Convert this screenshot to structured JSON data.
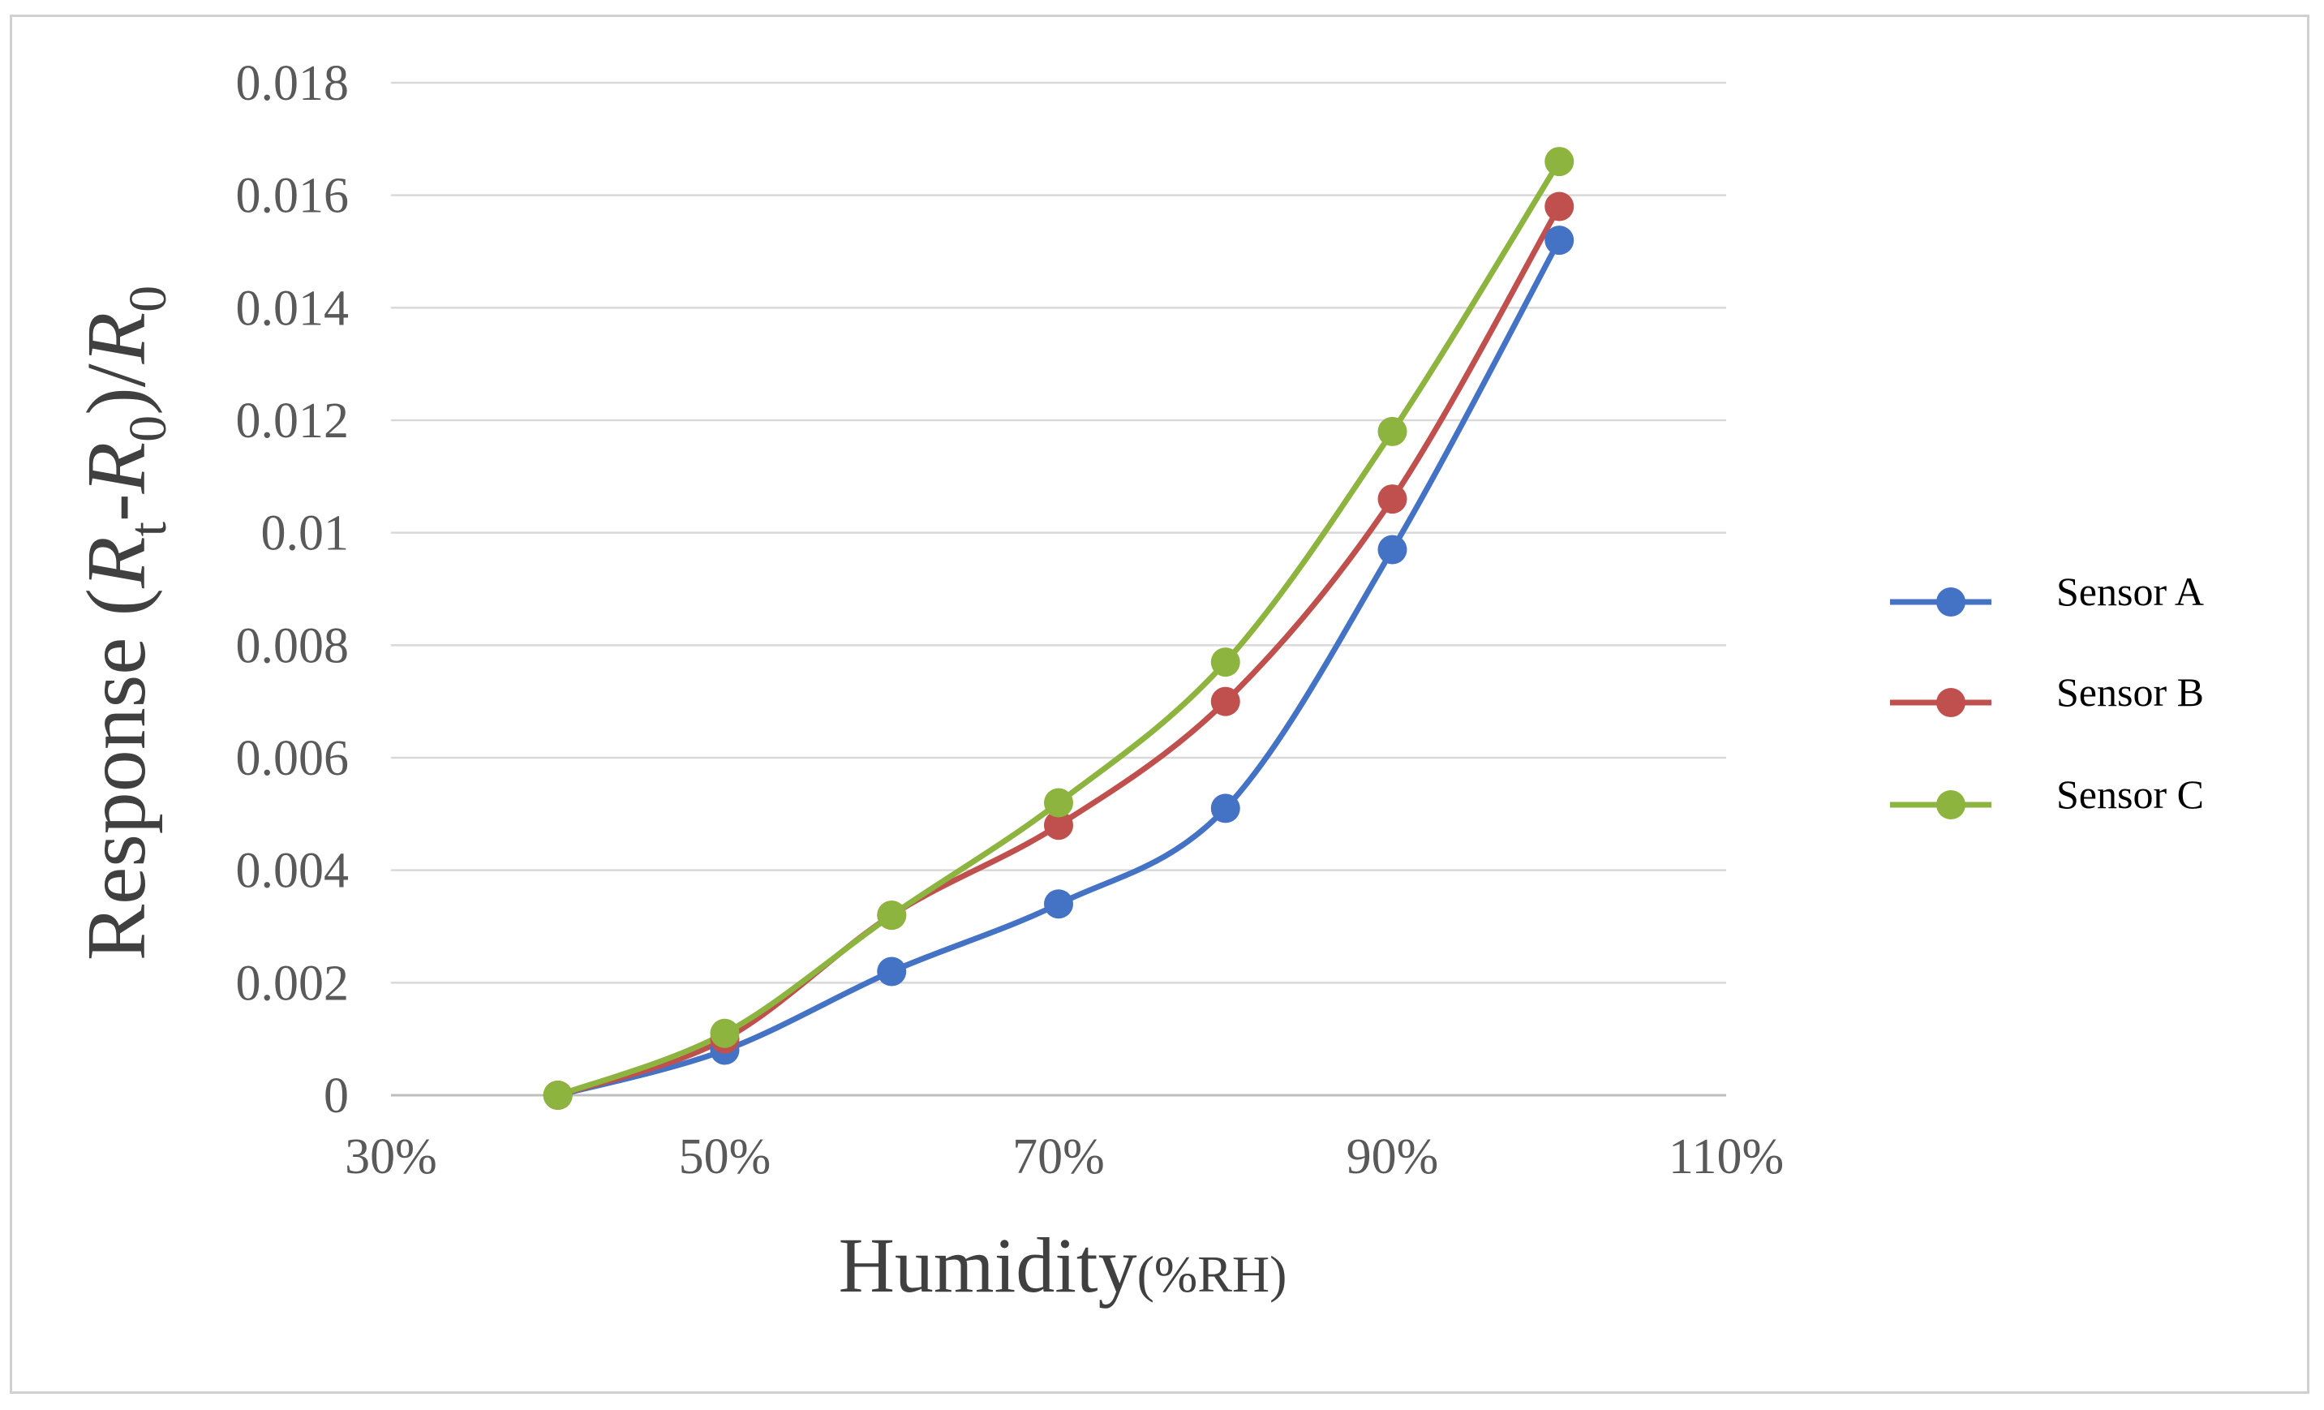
{
  "chart_data": {
    "type": "line",
    "smooth": true,
    "x": [
      40,
      50,
      60,
      70,
      80,
      90,
      100
    ],
    "xlim": [
      30,
      110
    ],
    "x_ticks": [
      30,
      50,
      70,
      90,
      110
    ],
    "x_tick_labels": [
      "30%",
      "50%",
      "70%",
      "90%",
      "110%"
    ],
    "ylim": [
      0,
      0.018
    ],
    "y_ticks": [
      0,
      0.002,
      0.004,
      0.006,
      0.008,
      0.01,
      0.012,
      0.014,
      0.016,
      0.018
    ],
    "y_tick_labels": [
      "0",
      "0.002",
      "0.004",
      "0.006",
      "0.008",
      "0.01",
      "0.012",
      "0.014",
      "0.016",
      "0.018"
    ],
    "xlabel": {
      "main": "Humidity",
      "unit": "(%RH)"
    },
    "ylabel": {
      "prefix": "Response (",
      "r1": "R",
      "sub1": "t",
      "mid": "-",
      "r2": "R",
      "sub2": "0",
      "close": ")/",
      "r3": "R",
      "sub3": "0"
    },
    "grid": "horizontal",
    "legend_position": "right",
    "series": [
      {
        "name": "Sensor A",
        "color": "#4472C4",
        "values": [
          0,
          0.0008,
          0.0022,
          0.0034,
          0.0051,
          0.0097,
          0.0152
        ]
      },
      {
        "name": "Sensor B",
        "color": "#C0504D",
        "values": [
          0,
          0.001,
          0.0032,
          0.0048,
          0.007,
          0.0106,
          0.0158
        ]
      },
      {
        "name": "Sensor C",
        "color": "#8DB43F",
        "values": [
          0,
          0.0011,
          0.0032,
          0.0052,
          0.0077,
          0.0118,
          0.0166
        ]
      }
    ]
  }
}
